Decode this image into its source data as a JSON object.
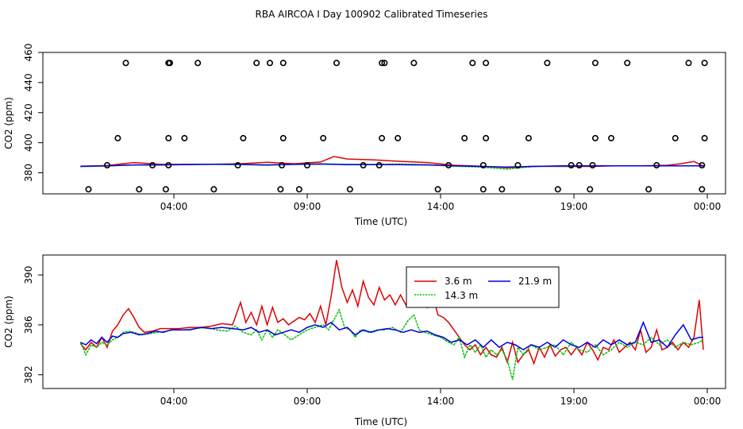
{
  "title": "RBA AIRCOA I  Day 100902  Calibrated Timeseries",
  "chart_data": [
    {
      "type": "line",
      "panel": "top",
      "xlabel": "Time (UTC)",
      "ylabel": "CO2 (ppm)",
      "xlim": [
        0,
        24.2
      ],
      "ylim": [
        366,
        460
      ],
      "xticks": [
        {
          "v": 4,
          "label": "04:00"
        },
        {
          "v": 9,
          "label": "09:00"
        },
        {
          "v": 14,
          "label": "14:00"
        },
        {
          "v": 19,
          "label": "19:00"
        },
        {
          "v": 24,
          "label": "00:00"
        }
      ],
      "yticks": [
        {
          "v": 380,
          "label": "380"
        },
        {
          "v": 400,
          "label": "400"
        },
        {
          "v": 420,
          "label": "420"
        },
        {
          "v": 440,
          "label": "440"
        },
        {
          "v": 460,
          "label": "460"
        }
      ],
      "series": [
        {
          "name": "3.6 m",
          "color": "#e00000",
          "x": [
            0.5,
            1.5,
            2.5,
            3.5,
            4.5,
            5.5,
            6.5,
            7.5,
            8.5,
            9.5,
            10.0,
            10.5,
            11.5,
            12.5,
            13.5,
            14.5,
            15.5,
            16.5,
            17.5,
            18.5,
            19.5,
            20.5,
            21.5,
            22.5,
            23.0,
            23.5,
            23.9
          ],
          "y": [
            384.4,
            384.8,
            386.8,
            385.6,
            385.6,
            385.7,
            386.0,
            387.0,
            386.0,
            387.2,
            390.8,
            389.2,
            388.6,
            387.6,
            386.8,
            385.0,
            384.4,
            383.4,
            384.4,
            384.2,
            384.2,
            384.6,
            384.6,
            385.0,
            386.0,
            387.5,
            384.0
          ]
        },
        {
          "name": "14.3 m",
          "color": "#00c000",
          "x": [
            0.5,
            1.5,
            2.5,
            3.5,
            4.5,
            5.5,
            6.5,
            7.5,
            8.5,
            9.5,
            10.5,
            11.5,
            12.5,
            13.5,
            14.5,
            15.5,
            16.5,
            17.5,
            18.5,
            19.5,
            20.5,
            21.5,
            22.5,
            23.5,
            23.9
          ],
          "y": [
            384.0,
            384.6,
            385.2,
            385.2,
            385.5,
            385.6,
            385.4,
            385.0,
            385.6,
            386.0,
            385.6,
            385.6,
            385.8,
            385.4,
            384.4,
            383.8,
            382.4,
            384.2,
            384.4,
            384.6,
            384.6,
            384.6,
            384.6,
            384.6,
            384.6
          ]
        },
        {
          "name": "21.9 m",
          "color": "#0000e0",
          "x": [
            0.5,
            1.5,
            2.5,
            3.5,
            4.5,
            5.5,
            6.5,
            7.5,
            8.5,
            9.5,
            10.5,
            11.5,
            12.5,
            13.5,
            14.5,
            15.5,
            16.5,
            17.5,
            18.5,
            19.5,
            20.5,
            21.5,
            22.5,
            23.5,
            23.9
          ],
          "y": [
            384.4,
            384.6,
            385.2,
            385.2,
            385.5,
            385.7,
            385.6,
            385.2,
            385.6,
            385.8,
            385.4,
            385.4,
            385.4,
            385.2,
            384.6,
            384.2,
            383.8,
            384.2,
            384.6,
            384.6,
            384.6,
            384.6,
            384.6,
            384.6,
            384.6
          ]
        }
      ],
      "calibration_points": {
        "x": [
          0.8,
          1.5,
          1.9,
          2.2,
          2.7,
          3.2,
          3.7,
          3.8,
          3.8,
          3.8,
          3.85,
          4.4,
          4.9,
          5.5,
          6.4,
          6.6,
          7.1,
          7.6,
          8.0,
          8.05,
          8.1,
          8.1,
          8.7,
          9.0,
          9.6,
          10.1,
          10.6,
          11.1,
          11.7,
          11.8,
          11.8,
          11.9,
          12.4,
          13.0,
          13.9,
          14.3,
          14.9,
          15.2,
          15.6,
          15.6,
          15.7,
          15.7,
          16.3,
          16.9,
          17.3,
          18.0,
          18.4,
          18.9,
          19.2,
          19.6,
          19.7,
          19.8,
          19.8,
          20.4,
          21.0,
          21.8,
          22.1,
          22.8,
          23.3,
          23.8,
          23.8,
          23.9,
          23.9
        ],
        "y": [
          369,
          385,
          403,
          453,
          369,
          385,
          369,
          385,
          403,
          453,
          453,
          403,
          453,
          369,
          385,
          403,
          453,
          453,
          369,
          385,
          403,
          453,
          369,
          385,
          403,
          453,
          369,
          385,
          385,
          403,
          453,
          453,
          403,
          453,
          369,
          385,
          403,
          453,
          369,
          385,
          403,
          453,
          369,
          385,
          403,
          453,
          369,
          385,
          385,
          369,
          385,
          403,
          453,
          403,
          453,
          369,
          385,
          403,
          453,
          369,
          385,
          403,
          453
        ]
      }
    },
    {
      "type": "line",
      "panel": "bottom",
      "xlabel": "Time (UTC)",
      "ylabel": "CO2 (ppm)",
      "xlim": [
        0,
        24.2
      ],
      "ylim": [
        380.9,
        391.6
      ],
      "xticks": [
        {
          "v": 4,
          "label": "04:00"
        },
        {
          "v": 9,
          "label": "09:00"
        },
        {
          "v": 14,
          "label": "14:00"
        },
        {
          "v": 19,
          "label": "19:00"
        },
        {
          "v": 24,
          "label": "00:00"
        }
      ],
      "yticks": [
        {
          "v": 382,
          "label": "382"
        },
        {
          "v": 386,
          "label": "386"
        },
        {
          "v": 390,
          "label": "390"
        }
      ],
      "legend": {
        "placement": "top-center",
        "entries": [
          "3.6 m",
          "14.3 m",
          "21.9 m"
        ]
      },
      "series": [
        {
          "name": "3.6 m",
          "color": "#e00000",
          "x": [
            0.5,
            0.7,
            0.9,
            1.1,
            1.3,
            1.5,
            1.7,
            1.9,
            2.1,
            2.3,
            2.5,
            2.7,
            2.9,
            3.2,
            3.5,
            3.8,
            4.2,
            4.6,
            5.0,
            5.4,
            5.8,
            6.2,
            6.3,
            6.5,
            6.7,
            6.9,
            7.1,
            7.3,
            7.5,
            7.7,
            7.9,
            8.1,
            8.3,
            8.5,
            8.7,
            8.9,
            9.1,
            9.3,
            9.5,
            9.7,
            9.9,
            10.1,
            10.3,
            10.5,
            10.7,
            10.9,
            11.1,
            11.3,
            11.5,
            11.7,
            11.9,
            12.1,
            12.3,
            12.5,
            12.7,
            12.9,
            13.1,
            13.3,
            13.5,
            13.7,
            13.9,
            14.1,
            14.3,
            14.5,
            14.7,
            14.9,
            15.1,
            15.3,
            15.5,
            15.7,
            15.9,
            16.1,
            16.3,
            16.5,
            16.7,
            16.9,
            17.1,
            17.3,
            17.5,
            17.7,
            17.9,
            18.1,
            18.3,
            18.5,
            18.7,
            18.9,
            19.1,
            19.3,
            19.5,
            19.7,
            19.9,
            20.1,
            20.3,
            20.5,
            20.7,
            20.9,
            21.1,
            21.3,
            21.5,
            21.7,
            21.9,
            22.1,
            22.3,
            22.5,
            22.7,
            22.9,
            23.1,
            23.3,
            23.5,
            23.7,
            23.85
          ],
          "y": [
            384.5,
            384.0,
            384.6,
            384.2,
            385.0,
            384.2,
            385.5,
            386.0,
            386.8,
            387.3,
            386.6,
            385.8,
            385.4,
            385.5,
            385.7,
            385.7,
            385.7,
            385.8,
            385.8,
            385.9,
            386.1,
            386.0,
            386.6,
            387.8,
            386.2,
            387.0,
            386.0,
            387.5,
            386.0,
            387.4,
            386.2,
            386.5,
            386.0,
            386.3,
            386.6,
            386.4,
            386.9,
            386.2,
            387.5,
            386.0,
            388.3,
            391.2,
            389.0,
            387.8,
            388.8,
            387.5,
            389.5,
            388.2,
            387.6,
            389.0,
            388.0,
            388.4,
            387.6,
            388.4,
            387.6,
            388.0,
            387.8,
            388.2,
            387.4,
            388.5,
            386.8,
            386.6,
            386.2,
            385.6,
            385.0,
            384.4,
            384.0,
            384.4,
            383.6,
            384.2,
            383.6,
            383.4,
            384.2,
            383.0,
            384.6,
            383.0,
            383.6,
            384.0,
            382.9,
            384.2,
            383.4,
            384.4,
            383.5,
            384.0,
            384.2,
            383.6,
            384.2,
            383.6,
            384.6,
            384.0,
            383.2,
            384.2,
            384.0,
            384.8,
            383.8,
            384.2,
            384.6,
            384.0,
            385.6,
            383.8,
            384.2,
            385.6,
            384.0,
            384.2,
            384.6,
            384.0,
            384.6,
            384.2,
            385.0,
            388.0,
            384.0
          ]
        },
        {
          "name": "14.3 m",
          "color": "#00c000",
          "x": [
            0.5,
            0.7,
            0.9,
            1.1,
            1.3,
            1.5,
            1.7,
            1.9,
            2.1,
            2.3,
            2.5,
            2.8,
            3.1,
            3.4,
            3.7,
            4.0,
            4.4,
            4.8,
            5.2,
            5.6,
            6.0,
            6.3,
            6.6,
            6.9,
            7.1,
            7.3,
            7.5,
            7.7,
            7.9,
            8.1,
            8.4,
            8.7,
            9.0,
            9.3,
            9.6,
            9.8,
            10.0,
            10.2,
            10.4,
            10.6,
            10.8,
            11.0,
            11.3,
            11.6,
            11.9,
            12.2,
            12.5,
            12.8,
            13.0,
            13.2,
            13.4,
            13.7,
            14.0,
            14.3,
            14.5,
            14.7,
            14.9,
            15.1,
            15.3,
            15.5,
            15.7,
            15.9,
            16.1,
            16.3,
            16.5,
            16.7,
            16.9,
            17.1,
            17.4,
            17.7,
            18.0,
            18.3,
            18.6,
            18.9,
            19.2,
            19.5,
            19.8,
            20.1,
            20.4,
            20.7,
            21.0,
            21.3,
            21.6,
            21.9,
            22.2,
            22.5,
            22.8,
            23.1,
            23.4,
            23.7,
            23.85
          ],
          "y": [
            384.6,
            383.6,
            384.4,
            384.2,
            384.6,
            384.4,
            384.8,
            385.0,
            385.4,
            385.5,
            385.4,
            385.2,
            385.3,
            385.4,
            385.5,
            385.6,
            385.6,
            385.7,
            385.8,
            385.6,
            385.5,
            385.9,
            385.4,
            385.2,
            385.6,
            384.8,
            385.6,
            385.0,
            385.6,
            385.3,
            384.8,
            385.2,
            385.6,
            385.8,
            386.0,
            385.6,
            386.4,
            387.2,
            385.8,
            385.6,
            385.0,
            385.6,
            385.4,
            385.6,
            385.6,
            385.8,
            385.4,
            386.4,
            386.8,
            385.6,
            385.4,
            385.2,
            385.0,
            384.6,
            384.4,
            385.0,
            383.4,
            384.4,
            383.8,
            384.4,
            383.4,
            384.0,
            383.6,
            384.0,
            383.2,
            381.6,
            384.2,
            383.6,
            384.4,
            384.0,
            384.2,
            384.4,
            383.6,
            384.6,
            384.0,
            383.8,
            384.4,
            383.6,
            384.0,
            384.6,
            384.2,
            384.6,
            384.4,
            385.0,
            384.4,
            384.8,
            384.2,
            384.6,
            384.4,
            384.6,
            384.8
          ]
        },
        {
          "name": "21.9 m",
          "color": "#0000e0",
          "x": [
            0.5,
            0.7,
            0.9,
            1.1,
            1.3,
            1.5,
            1.7,
            1.9,
            2.1,
            2.4,
            2.7,
            3.0,
            3.3,
            3.6,
            3.9,
            4.2,
            4.6,
            5.0,
            5.4,
            5.8,
            6.2,
            6.6,
            6.9,
            7.2,
            7.5,
            7.8,
            8.1,
            8.4,
            8.7,
            9.0,
            9.3,
            9.6,
            9.9,
            10.2,
            10.5,
            10.8,
            11.1,
            11.4,
            11.7,
            12.0,
            12.3,
            12.6,
            12.9,
            13.2,
            13.5,
            13.8,
            14.1,
            14.4,
            14.7,
            15.0,
            15.3,
            15.6,
            15.9,
            16.2,
            16.5,
            16.8,
            17.1,
            17.4,
            17.7,
            18.0,
            18.3,
            18.6,
            18.9,
            19.2,
            19.5,
            19.8,
            20.1,
            20.4,
            20.7,
            21.0,
            21.3,
            21.6,
            21.9,
            22.2,
            22.5,
            22.8,
            23.1,
            23.4,
            23.7,
            23.85
          ],
          "y": [
            384.6,
            384.4,
            384.8,
            384.5,
            385.0,
            384.6,
            385.1,
            385.0,
            385.3,
            385.4,
            385.2,
            385.3,
            385.5,
            385.4,
            385.6,
            385.6,
            385.6,
            385.8,
            385.7,
            385.8,
            385.7,
            385.6,
            385.8,
            385.4,
            385.6,
            385.2,
            385.4,
            385.6,
            385.4,
            385.8,
            386.0,
            385.8,
            386.2,
            385.6,
            385.8,
            385.2,
            385.6,
            385.4,
            385.6,
            385.7,
            385.6,
            385.4,
            385.6,
            385.4,
            385.5,
            385.2,
            385.0,
            384.6,
            384.8,
            384.4,
            384.8,
            384.2,
            384.8,
            384.2,
            384.6,
            384.4,
            384.0,
            384.4,
            384.2,
            384.6,
            384.2,
            384.8,
            384.4,
            384.2,
            384.6,
            384.2,
            384.8,
            384.4,
            384.8,
            384.4,
            384.6,
            386.2,
            384.6,
            384.8,
            384.2,
            385.2,
            386.0,
            384.8,
            385.0,
            385.0
          ]
        }
      ]
    }
  ]
}
